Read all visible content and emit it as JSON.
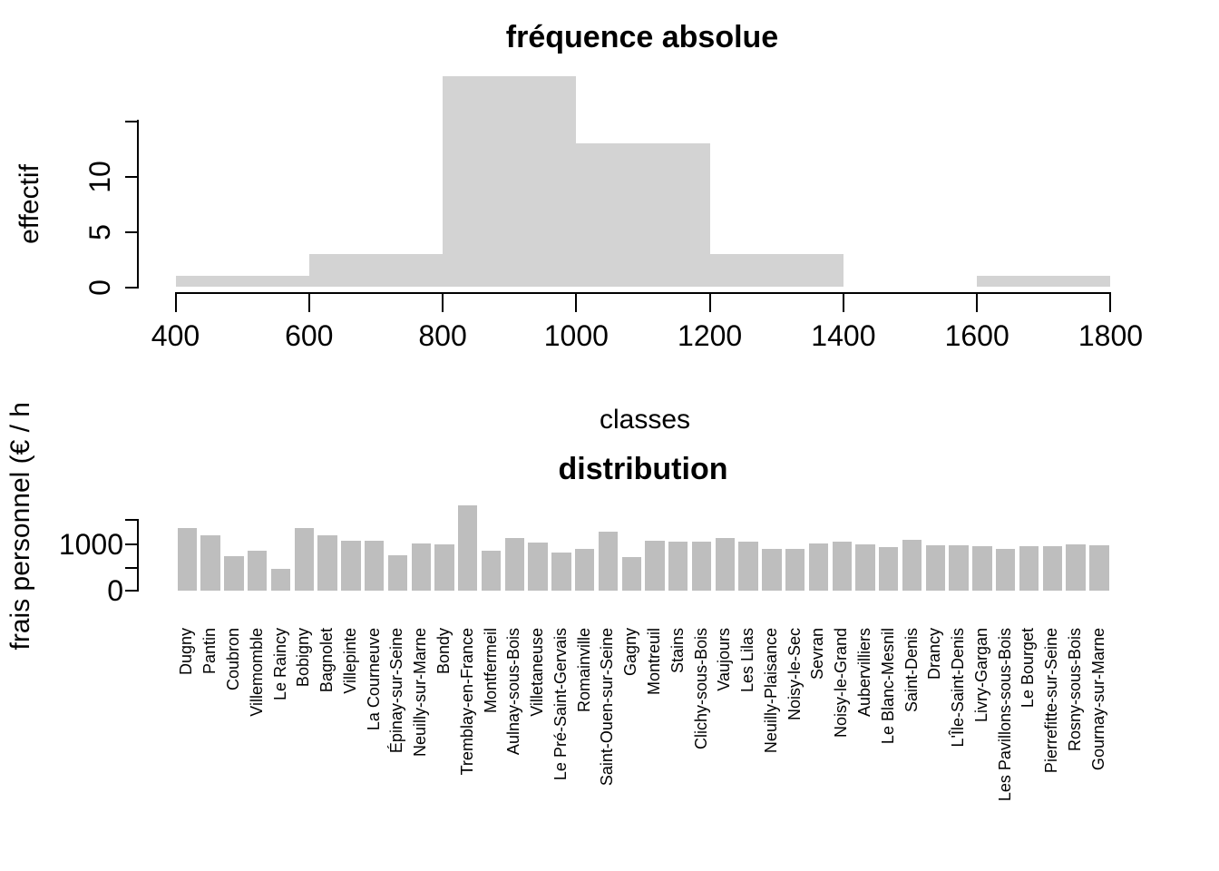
{
  "figure_background": "#ffffff",
  "axis_color": "#000000",
  "chart_data": [
    {
      "type": "bar",
      "subtype": "histogram",
      "title": "fréquence absolue",
      "xlabel": "classes",
      "ylabel": "effectif",
      "bar_color": "#d3d3d3",
      "bin_breaks": [
        400,
        600,
        800,
        1000,
        1200,
        1400,
        1600,
        1800
      ],
      "counts": [
        1,
        3,
        19,
        13,
        3,
        0,
        1
      ],
      "xlim": [
        400,
        1800
      ],
      "x_tick_values": [
        400,
        600,
        800,
        1000,
        1200,
        1400,
        1600,
        1800
      ],
      "x_tick_labels": [
        "400",
        "600",
        "800",
        "1000",
        "1200",
        "1400",
        "1600",
        "1800"
      ],
      "y_tick_values": [
        0,
        5,
        10,
        15
      ],
      "y_tick_labels": [
        "0",
        "5",
        "10",
        ""
      ],
      "ylim": [
        0,
        15
      ],
      "grid": false,
      "legend": null
    },
    {
      "type": "bar",
      "title": "distribution",
      "xlabel": "",
      "ylabel": "frais personnel (€ / h",
      "bar_color": "#bebebe",
      "categories": [
        "Dugny",
        "Pantin",
        "Coubron",
        "Villemomble",
        "Le Raincy",
        "Bobigny",
        "Bagnolet",
        "Villepinte",
        "La Courneuve",
        "Épinay-sur-Seine",
        "Neuilly-sur-Marne",
        "Bondy",
        "Tremblay-en-France",
        "Montfermeil",
        "Aulnay-sous-Bois",
        "Villetaneuse",
        "Le Pré-Saint-Gervais",
        "Romainville",
        "Saint-Ouen-sur-Seine",
        "Gagny",
        "Montreuil",
        "Stains",
        "Clichy-sous-Bois",
        "Vaujours",
        "Les Lilas",
        "Neuilly-Plaisance",
        "Noisy-le-Sec",
        "Sevran",
        "Noisy-le-Grand",
        "Aubervilliers",
        "Le Blanc-Mesnil",
        "Saint-Denis",
        "Drancy",
        "L'Île-Saint-Denis",
        "Livry-Gargan",
        "Les Pavillons-sous-Bois",
        "Le Bourget",
        "Pierrefitte-sur-Seine",
        "Rosny-sous-Bois",
        "Gournay-sur-Marne"
      ],
      "values": [
        1320,
        1160,
        730,
        840,
        450,
        1310,
        1165,
        1050,
        1060,
        750,
        990,
        980,
        1795,
        840,
        1100,
        1010,
        810,
        870,
        1240,
        710,
        1060,
        1030,
        1030,
        1100,
        1025,
        870,
        870,
        1000,
        1030,
        970,
        925,
        1075,
        950,
        950,
        935,
        875,
        935,
        935,
        980,
        950
      ],
      "y_tick_values": [
        0,
        500,
        1000,
        1500
      ],
      "y_tick_labels": [
        "0",
        "",
        "1000",
        ""
      ],
      "ylim": [
        0,
        1500
      ],
      "grid": false,
      "legend": null
    }
  ]
}
